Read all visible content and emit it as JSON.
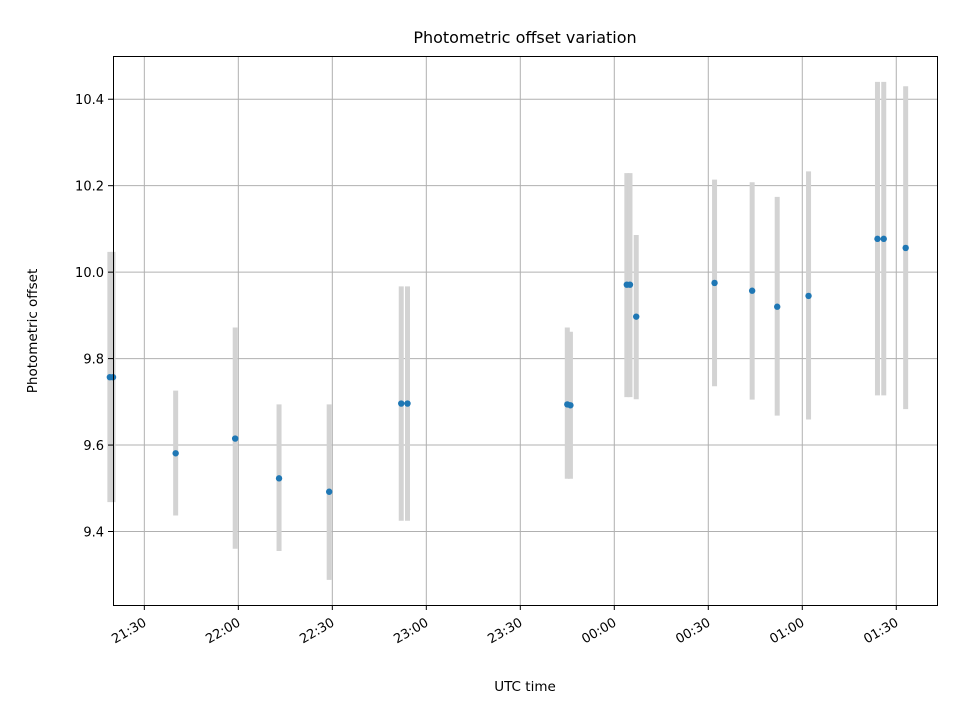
{
  "chart_data": {
    "type": "scatter",
    "title": "Photometric offset variation",
    "xlabel": "UTC time",
    "ylabel": "Photometric offset",
    "x_ticks": [
      "21:30",
      "22:00",
      "22:30",
      "23:00",
      "23:30",
      "00:00",
      "00:30",
      "01:00",
      "01:30"
    ],
    "x_range": [
      "21:20",
      "01:43"
    ],
    "y_ticks": [
      "9.4",
      "9.6",
      "9.8",
      "10.0",
      "10.2",
      "10.4"
    ],
    "ylim": [
      9.23,
      10.5
    ],
    "grid": true,
    "colors": {
      "point": "#1f77b4",
      "errorbar": "#d3d3d3",
      "grid": "#b0b0b0"
    },
    "points": [
      {
        "x": "21:19",
        "y": 9.757,
        "low": 9.468,
        "high": 10.047
      },
      {
        "x": "21:20",
        "y": 9.757,
        "low": 9.468,
        "high": 10.047
      },
      {
        "x": "21:40",
        "y": 9.581,
        "low": 9.437,
        "high": 9.726
      },
      {
        "x": "21:59",
        "y": 9.615,
        "low": 9.36,
        "high": 9.872
      },
      {
        "x": "22:13",
        "y": 9.523,
        "low": 9.355,
        "high": 9.694
      },
      {
        "x": "22:29",
        "y": 9.492,
        "low": 9.288,
        "high": 9.694
      },
      {
        "x": "22:52",
        "y": 9.696,
        "low": 9.425,
        "high": 9.967
      },
      {
        "x": "22:54",
        "y": 9.696,
        "low": 9.425,
        "high": 9.967
      },
      {
        "x": "23:45",
        "y": 9.694,
        "low": 9.522,
        "high": 9.872
      },
      {
        "x": "23:46",
        "y": 9.692,
        "low": 9.522,
        "high": 9.862
      },
      {
        "x": "00:04",
        "y": 9.971,
        "low": 9.711,
        "high": 10.229
      },
      {
        "x": "00:05",
        "y": 9.971,
        "low": 9.711,
        "high": 10.229
      },
      {
        "x": "00:07",
        "y": 9.897,
        "low": 9.706,
        "high": 10.086
      },
      {
        "x": "00:32",
        "y": 9.975,
        "low": 9.736,
        "high": 10.214
      },
      {
        "x": "00:44",
        "y": 9.957,
        "low": 9.705,
        "high": 10.208
      },
      {
        "x": "00:52",
        "y": 9.92,
        "low": 9.668,
        "high": 10.174
      },
      {
        "x": "01:02",
        "y": 9.945,
        "low": 9.659,
        "high": 10.233
      },
      {
        "x": "01:24",
        "y": 10.077,
        "low": 9.715,
        "high": 10.44
      },
      {
        "x": "01:26",
        "y": 10.077,
        "low": 9.715,
        "high": 10.44
      },
      {
        "x": "01:33",
        "y": 10.056,
        "low": 9.683,
        "high": 10.43
      }
    ]
  }
}
